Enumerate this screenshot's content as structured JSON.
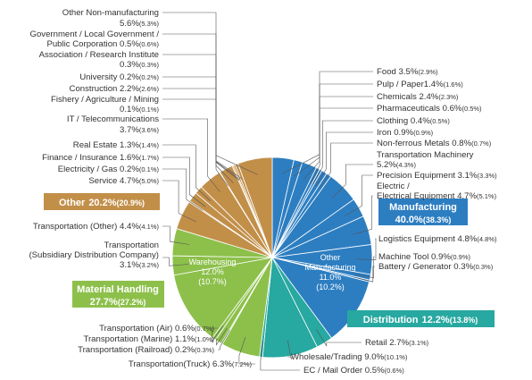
{
  "chart_data": {
    "type": "pie",
    "unit": "%",
    "slices": [
      {
        "group": "Manufacturing",
        "name": "Food",
        "value": 3.5,
        "prev": "2.9"
      },
      {
        "group": "Manufacturing",
        "name": "Pulp / Paper",
        "value": 1.4,
        "prev": "1.6"
      },
      {
        "group": "Manufacturing",
        "name": "Chemicals",
        "value": 2.4,
        "prev": "2.3"
      },
      {
        "group": "Manufacturing",
        "name": "Pharmaceuticals",
        "value": 0.6,
        "prev": "0.5"
      },
      {
        "group": "Manufacturing",
        "name": "Clothing",
        "value": 0.4,
        "prev": "0.5"
      },
      {
        "group": "Manufacturing",
        "name": "Iron",
        "value": 0.9,
        "prev": "0.9"
      },
      {
        "group": "Manufacturing",
        "name": "Non-ferrous Metals",
        "value": 0.8,
        "prev": "0.7"
      },
      {
        "group": "Manufacturing",
        "name": "Transportation Machinery",
        "value": 5.2,
        "prev": "4.3"
      },
      {
        "group": "Manufacturing",
        "name": "Precision Equipment",
        "value": 3.1,
        "prev": "3.3"
      },
      {
        "group": "Manufacturing",
        "name": "Electric / Electrical Equipment",
        "value": 4.7,
        "prev": "5.1"
      },
      {
        "group": "Manufacturing",
        "name": "Logistics Equipment",
        "value": 4.8,
        "prev": "4.8"
      },
      {
        "group": "Manufacturing",
        "name": "Machine Tool",
        "value": 0.9,
        "prev": "0.9"
      },
      {
        "group": "Manufacturing",
        "name": "Battery / Generator",
        "value": 0.3,
        "prev": "0.3"
      },
      {
        "group": "Manufacturing",
        "name": "Other Manufacturing",
        "value": 11.0,
        "prev": "10.2"
      },
      {
        "group": "Distribution",
        "name": "Retail",
        "value": 2.7,
        "prev": "3.1"
      },
      {
        "group": "Distribution",
        "name": "Wholesale/Trading",
        "value": 9.0,
        "prev": "10.1"
      },
      {
        "group": "Distribution",
        "name": "EC / Mail Order",
        "value": 0.5,
        "prev": "0.6"
      },
      {
        "group": "Material Handling",
        "name": "Transportation(Truck)",
        "value": 6.3,
        "prev": "7.2"
      },
      {
        "group": "Material Handling",
        "name": "Transportation (Railroad)",
        "value": 0.2,
        "prev": "0.3"
      },
      {
        "group": "Material Handling",
        "name": "Transportation (Marine)",
        "value": 1.1,
        "prev": "1.0"
      },
      {
        "group": "Material Handling",
        "name": "Transportation (Air)",
        "value": 0.6,
        "prev": "0.7"
      },
      {
        "group": "Material Handling",
        "name": "Warehousing",
        "value": 12.0,
        "prev": "10.7"
      },
      {
        "group": "Material Handling",
        "name": "Transportation (Subsidiary Distribution Company)",
        "value": 3.1,
        "prev": "3.2"
      },
      {
        "group": "Material Handling",
        "name": "Transportation (Other)",
        "value": 4.4,
        "prev": "4.1"
      },
      {
        "group": "Other",
        "name": "Service",
        "value": 4.7,
        "prev": "5.0"
      },
      {
        "group": "Other",
        "name": "Electricity / Gas",
        "value": 0.2,
        "prev": "0.1"
      },
      {
        "group": "Other",
        "name": "Finance / Insurance",
        "value": 1.6,
        "prev": "1.7"
      },
      {
        "group": "Other",
        "name": "Real Estate",
        "value": 1.3,
        "prev": "1.4"
      },
      {
        "group": "Other",
        "name": "IT / Telecommunications",
        "value": 3.7,
        "prev": "3.6"
      },
      {
        "group": "Other",
        "name": "Fishery / Agriculture / Mining",
        "value": 0.1,
        "prev": "0.1"
      },
      {
        "group": "Other",
        "name": "Construction",
        "value": 2.2,
        "prev": "2.6"
      },
      {
        "group": "Other",
        "name": "University",
        "value": 0.2,
        "prev": "0.2"
      },
      {
        "group": "Other",
        "name": "Association / Research Institute",
        "value": 0.3,
        "prev": "0.3"
      },
      {
        "group": "Other",
        "name": "Government / Local Government / Public Corporation",
        "value": 0.5,
        "prev": "0.6"
      },
      {
        "group": "Other",
        "name": "Other Non-manufacturing",
        "value": 5.6,
        "prev": "5.3"
      }
    ],
    "groups": [
      {
        "name": "Manufacturing",
        "value": 40.0,
        "prev": "38.3",
        "color": "#2d7ec1"
      },
      {
        "name": "Distribution",
        "value": 12.2,
        "prev": "13.8",
        "color": "#27a8a0"
      },
      {
        "name": "Material Handling",
        "value": 27.7,
        "prev": "27.2",
        "color": "#8dc04b"
      },
      {
        "name": "Other",
        "value": 20.2,
        "prev": "20.9",
        "color": "#c28f49"
      }
    ]
  },
  "group_labels": {
    "manufacturing": {
      "name": "Manufacturing",
      "value": "40.0%",
      "prev": "(38.3%)"
    },
    "distribution": {
      "name": "Distribution",
      "value": "12.2%",
      "prev": "(13.8%)"
    },
    "material_handling": {
      "name": "Material Handling",
      "value": "27.7%",
      "prev": "(27.2%)"
    },
    "other": {
      "name": "Other",
      "value": "20.2%",
      "prev": "(20.9%)"
    }
  },
  "inner_labels": {
    "warehousing": {
      "name": "Warehousing",
      "value": "12.0%",
      "prev": "(10.7%)"
    },
    "other_manufacturing": {
      "line1": "Other",
      "line2": "Manufacturing",
      "value": "11.0%",
      "prev": "(10.2%)"
    }
  },
  "labels": {
    "food": {
      "t": "Food  3.5%",
      "p": "(2.9%)"
    },
    "pulp": {
      "t": "Pulp / Paper1.4%",
      "p": "(1.6%)"
    },
    "chemicals": {
      "t": "Chemicals 2.4%",
      "p": "(2.3%)"
    },
    "pharma": {
      "t": "Pharmaceuticals 0.6%",
      "p": "(0.5%)"
    },
    "clothing": {
      "t": "Clothing 0.4%",
      "p": "(0.5%)"
    },
    "iron": {
      "t": "Iron 0.9%",
      "p": "(0.9%)"
    },
    "nonferrous": {
      "t": "Non-ferrous Metals 0.8%",
      "p": "(0.7%)"
    },
    "transmach": {
      "l1": "Transportation Machinery",
      "t": "5.2%",
      "p": "(4.3%)"
    },
    "precision": {
      "t": "Precision Equipment 3.1%",
      "p": "(3.3%)"
    },
    "electric": {
      "l1": "Electric /",
      "t": "Electrical Equipment 4.7%",
      "p": "(5.1%)"
    },
    "logistics": {
      "t": "Logistics Equipment 4.8%",
      "p": "(4.8%)"
    },
    "machine": {
      "t": "Machine Tool 0.9%",
      "p": "(0.9%)"
    },
    "battery": {
      "t": "Battery / Generator  0.3%",
      "p": "(0.3%)"
    },
    "retail": {
      "t": "Retail 2.7%",
      "p": "(3.1%)"
    },
    "wholesale": {
      "t": "Wholesale/Trading 9.0%",
      "p": "(10.1%)"
    },
    "ec": {
      "t": "EC / Mail Order 0.5%",
      "p": "(0.6%)"
    },
    "truck": {
      "t": "Transportation(Truck)  6.3%",
      "p": "(7.2%)"
    },
    "railroad": {
      "t": "Transportation (Railroad) 0.2%",
      "p": "(0.3%)"
    },
    "marine": {
      "t": "Transportation (Marine)  1.1%",
      "p": "(1.0%)"
    },
    "air": {
      "t": "Transportation (Air)  0.6%",
      "p": "(0.7%)"
    },
    "subsidiary": {
      "l1": "Transportation",
      "l2": "(Subsidiary Distribution Company)",
      "t": "3.1%",
      "p": "(3.2%)"
    },
    "trans_other": {
      "t": "Transportation (Other) 4.4%",
      "p": "(4.1%)"
    },
    "service": {
      "t": "Service 4.7%",
      "p": "(5.0%)"
    },
    "electricity": {
      "t": "Electricity / Gas 0.2%",
      "p": "(0.1%)"
    },
    "finance": {
      "t": "Finance / Insurance 1.6%",
      "p": "(1.7%)"
    },
    "realestate": {
      "t": "Real Estate 1.3%",
      "p": "(1.4%)"
    },
    "it": {
      "l1": "IT / Telecommunications",
      "t": "3.7%",
      "p": "(3.6%)"
    },
    "fishery": {
      "l1": "Fishery / Agriculture / Mining",
      "t": "0.1%",
      "p": "(0.1%)"
    },
    "construction": {
      "t": "Construction 2.2%",
      "p": "(2.6%)"
    },
    "university": {
      "t": "University 0.2%",
      "p": "(0.2%)"
    },
    "association": {
      "l1": "Association / Research Institute",
      "t": "0.3%",
      "p": "(0.3%)"
    },
    "government": {
      "l1": "Government / Local Government /",
      "t": "Public Corporation 0.5%",
      "p": "(0.6%)"
    },
    "othernonmfg": {
      "l1": "Other Non-manufacturing",
      "t": "5.6%",
      "p": "(5.3%)"
    }
  }
}
